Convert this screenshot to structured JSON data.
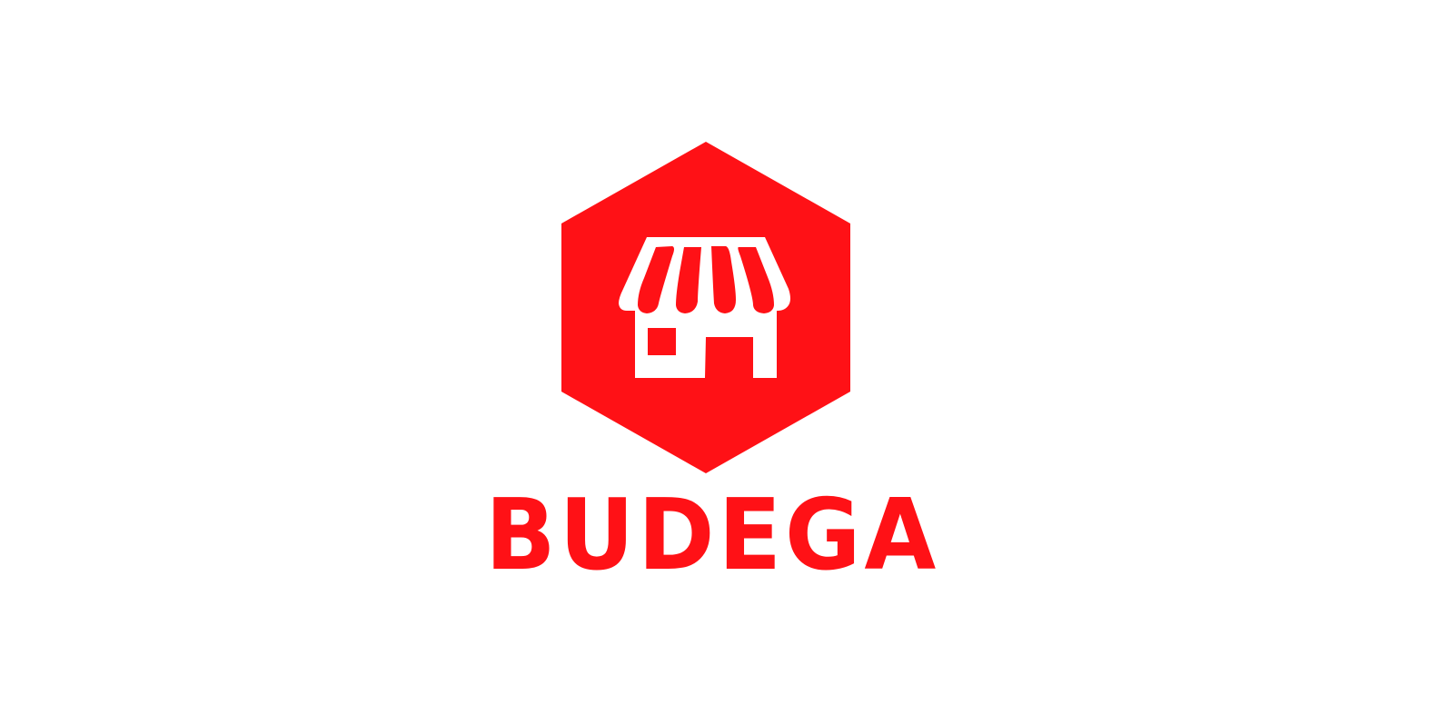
{
  "brand": {
    "name": "BUDEGA",
    "accent_color": "#FF1116",
    "background_color": "#FFFFFF",
    "icon": "storefront-hexagon-icon"
  }
}
